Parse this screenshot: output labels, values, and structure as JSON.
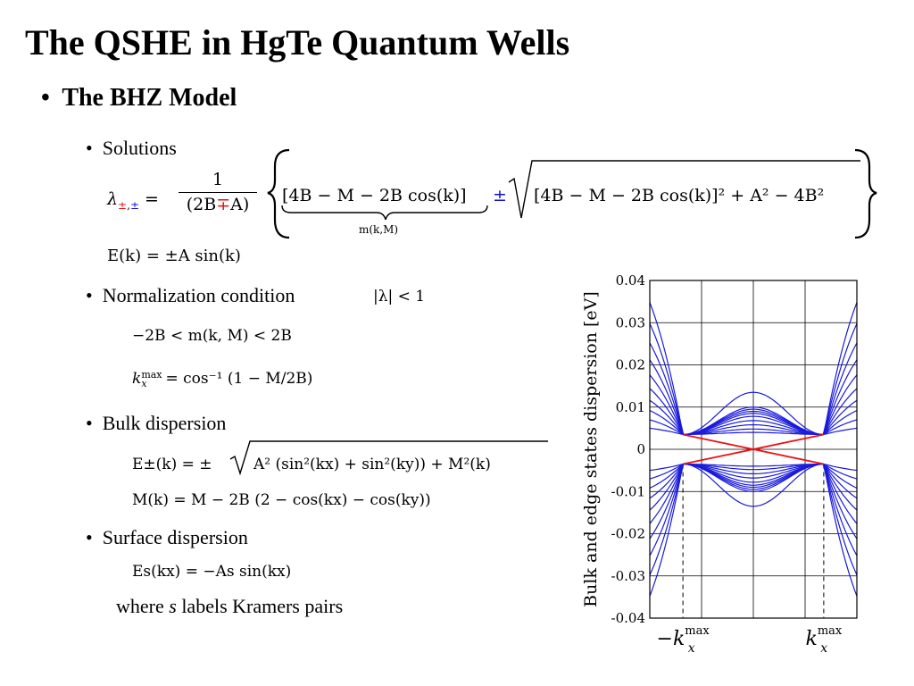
{
  "slide": {
    "title": "The QSHE in HgTe Quantum Wells",
    "bullet_main": "The BHZ Model",
    "bullet_dot": "•",
    "sub_bullets": {
      "solutions": "Solutions",
      "normalization": "Normalization condition",
      "bulk": "Bulk dispersion",
      "surface": "Surface dispersion"
    },
    "equations": {
      "lambda_lhs": "λ",
      "lambda_sub_first": "±",
      "lambda_sub_comma": ",",
      "lambda_sub_second": "±",
      "equals": "=",
      "frac_num": "1",
      "frac_den_left": "(2B",
      "frac_den_sign": "∓",
      "frac_den_right": "A)",
      "bracket_term": "[4B − M − 2B cos(k)]",
      "pm": "±",
      "sqrt_content": "[4B − M − 2B cos(k)]² + A² − 4B²",
      "underbrace_label": "m(k,M)",
      "energy": "E(k) = ±A sin(k)",
      "norm_condition": "|λ| < 1",
      "norm_range": "−2B < m(k, M) < 2B",
      "kmax_lhs": "k",
      "kmax_sup": "max",
      "kmax_sub": "x",
      "kmax_rhs": "= cos⁻¹ (1 − M/2B)",
      "bulk_lhs": "E±(k) = ±",
      "bulk_sqrt": "A² (sin²(kx) + sin²(ky)) + M²(k)",
      "bulk_mass": "M(k) = M − 2B (2 − cos(kx) − cos(ky))",
      "surface_eq": "Es(kx) = −As sin(kx)"
    },
    "kramers_note": {
      "before": "where ",
      "var": "s",
      "after": " labels Kramers pairs"
    }
  },
  "chart_data": {
    "type": "line",
    "title": "",
    "xlabel": "",
    "ylabel": "Bulk and edge states dispersion [eV]",
    "ylim": [
      -0.04,
      0.04
    ],
    "xlim": [
      -1,
      1
    ],
    "grid": true,
    "y_ticks": [
      0.04,
      0.03,
      0.02,
      0.01,
      0,
      -0.01,
      -0.02,
      -0.03,
      -0.04
    ],
    "y_tick_labels": [
      "0.04",
      "0.03",
      "0.02",
      "0.01",
      "0",
      "-0.01",
      "-0.02",
      "-0.03",
      "-0.04"
    ],
    "x_ticks": [
      -0.5,
      0,
      0.5
    ],
    "x_markers": [
      {
        "x": -0.68,
        "prefix": "−",
        "label": "k",
        "sup": "max",
        "sub": "x"
      },
      {
        "x": 0.68,
        "prefix": "",
        "label": "k",
        "sup": "max",
        "sub": "x"
      }
    ],
    "edge_crossing": {
      "k_max": 0.68,
      "energy_at_kmax": 0.0035,
      "color": "#ee1111"
    },
    "bulk_bands": {
      "color": "#1a1adc",
      "gap_edge": 0.0035,
      "conduction": [
        {
          "e_center": 0.0135,
          "e_edge": 0.0348
        },
        {
          "e_center": 0.01,
          "e_edge": 0.0298
        },
        {
          "e_center": 0.0095,
          "e_edge": 0.0252
        },
        {
          "e_center": 0.009,
          "e_edge": 0.0212
        },
        {
          "e_center": 0.0085,
          "e_edge": 0.0176
        },
        {
          "e_center": 0.0078,
          "e_edge": 0.0144
        },
        {
          "e_center": 0.0068,
          "e_edge": 0.0116
        },
        {
          "e_center": 0.0058,
          "e_edge": 0.0092
        },
        {
          "e_center": 0.0048,
          "e_edge": 0.007
        },
        {
          "e_center": 0.004,
          "e_edge": 0.005
        }
      ],
      "valence": [
        {
          "e_center": -0.0135,
          "e_edge": -0.0348
        },
        {
          "e_center": -0.01,
          "e_edge": -0.0298
        },
        {
          "e_center": -0.0095,
          "e_edge": -0.0252
        },
        {
          "e_center": -0.009,
          "e_edge": -0.0212
        },
        {
          "e_center": -0.0085,
          "e_edge": -0.0176
        },
        {
          "e_center": -0.0078,
          "e_edge": -0.0144
        },
        {
          "e_center": -0.0068,
          "e_edge": -0.0116
        },
        {
          "e_center": -0.0058,
          "e_edge": -0.0092
        },
        {
          "e_center": -0.0048,
          "e_edge": -0.007
        },
        {
          "e_center": -0.004,
          "e_edge": -0.005
        }
      ]
    }
  }
}
